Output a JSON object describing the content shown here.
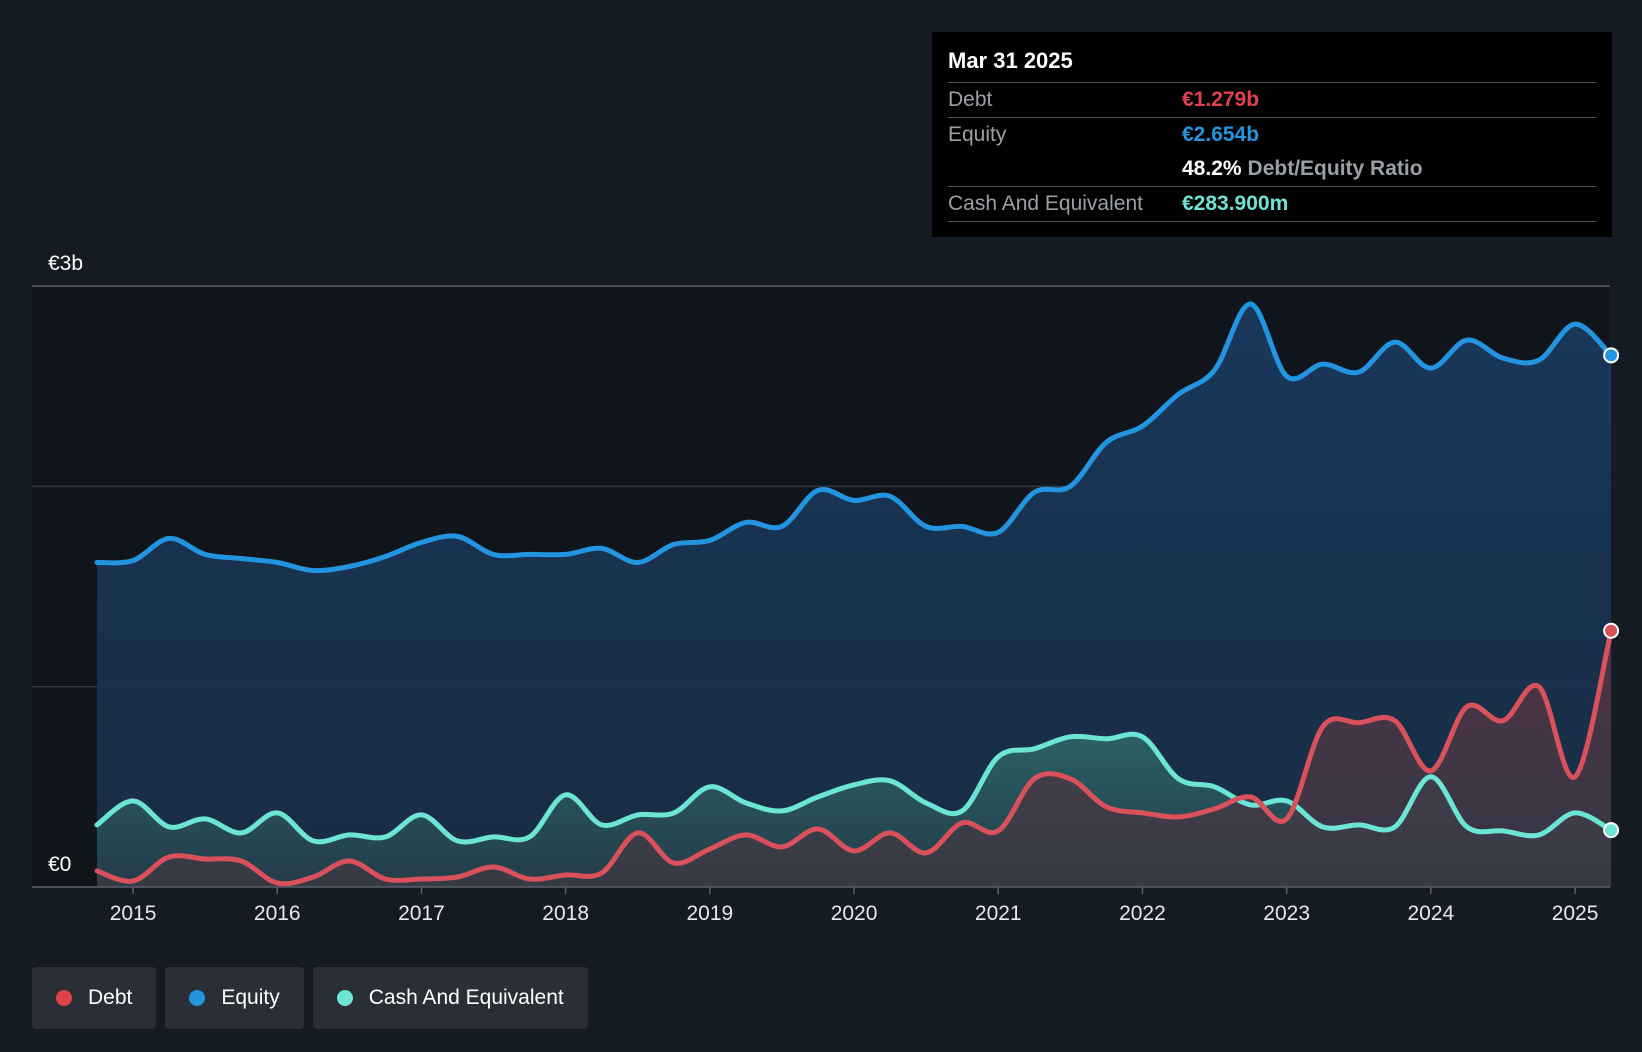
{
  "tooltip": {
    "date": "Mar 31 2025",
    "debt_label": "Debt",
    "debt_value": "€1.279b",
    "equity_label": "Equity",
    "equity_value": "€2.654b",
    "ratio_value": "48.2%",
    "ratio_label": "Debt/Equity Ratio",
    "cash_label": "Cash And Equivalent",
    "cash_value": "€283.900m"
  },
  "legend": [
    {
      "label": "Debt",
      "color": "#e2414e"
    },
    {
      "label": "Equity",
      "color": "#2394df"
    },
    {
      "label": "Cash And Equivalent",
      "color": "#6ce5d4"
    }
  ],
  "chart_data": {
    "type": "area",
    "title": "",
    "xlabel": "",
    "ylabel": "",
    "x_range": [
      2014.75,
      2025.25
    ],
    "ylim": [
      0,
      3
    ],
    "y_unit": "€b",
    "y_tick_labels": [
      {
        "value": 3,
        "label": "€3b"
      },
      {
        "value": 0,
        "label": "€0"
      }
    ],
    "gridlines": [
      1,
      2
    ],
    "x_ticks": [
      "2015",
      "2016",
      "2017",
      "2018",
      "2019",
      "2020",
      "2021",
      "2022",
      "2023",
      "2024",
      "2025"
    ],
    "colors": {
      "debt": "#d8515b",
      "equity": "#2394df",
      "cash": "#6ce5d4"
    },
    "series": [
      {
        "name": "Equity",
        "key": "equity",
        "points": [
          [
            2014.75,
            1.62
          ],
          [
            2015.0,
            1.63
          ],
          [
            2015.25,
            1.74
          ],
          [
            2015.5,
            1.66
          ],
          [
            2015.75,
            1.64
          ],
          [
            2016.0,
            1.62
          ],
          [
            2016.25,
            1.58
          ],
          [
            2016.5,
            1.6
          ],
          [
            2016.75,
            1.65
          ],
          [
            2017.0,
            1.72
          ],
          [
            2017.25,
            1.75
          ],
          [
            2017.5,
            1.66
          ],
          [
            2017.75,
            1.66
          ],
          [
            2018.0,
            1.66
          ],
          [
            2018.25,
            1.69
          ],
          [
            2018.5,
            1.62
          ],
          [
            2018.75,
            1.71
          ],
          [
            2019.0,
            1.73
          ],
          [
            2019.25,
            1.82
          ],
          [
            2019.5,
            1.8
          ],
          [
            2019.75,
            1.98
          ],
          [
            2020.0,
            1.93
          ],
          [
            2020.25,
            1.95
          ],
          [
            2020.5,
            1.8
          ],
          [
            2020.75,
            1.8
          ],
          [
            2021.0,
            1.77
          ],
          [
            2021.25,
            1.97
          ],
          [
            2021.5,
            2.0
          ],
          [
            2021.75,
            2.22
          ],
          [
            2022.0,
            2.3
          ],
          [
            2022.25,
            2.46
          ],
          [
            2022.5,
            2.58
          ],
          [
            2022.75,
            2.91
          ],
          [
            2023.0,
            2.55
          ],
          [
            2023.25,
            2.61
          ],
          [
            2023.5,
            2.57
          ],
          [
            2023.75,
            2.72
          ],
          [
            2024.0,
            2.59
          ],
          [
            2024.25,
            2.73
          ],
          [
            2024.5,
            2.64
          ],
          [
            2024.75,
            2.63
          ],
          [
            2025.0,
            2.81
          ],
          [
            2025.25,
            2.654
          ]
        ]
      },
      {
        "name": "Cash And Equivalent",
        "key": "cash",
        "points": [
          [
            2014.75,
            0.31
          ],
          [
            2015.0,
            0.43
          ],
          [
            2015.25,
            0.3
          ],
          [
            2015.5,
            0.34
          ],
          [
            2015.75,
            0.27
          ],
          [
            2016.0,
            0.37
          ],
          [
            2016.25,
            0.23
          ],
          [
            2016.5,
            0.26
          ],
          [
            2016.75,
            0.25
          ],
          [
            2017.0,
            0.36
          ],
          [
            2017.25,
            0.23
          ],
          [
            2017.5,
            0.25
          ],
          [
            2017.75,
            0.25
          ],
          [
            2018.0,
            0.46
          ],
          [
            2018.25,
            0.31
          ],
          [
            2018.5,
            0.36
          ],
          [
            2018.75,
            0.37
          ],
          [
            2019.0,
            0.5
          ],
          [
            2019.25,
            0.42
          ],
          [
            2019.5,
            0.38
          ],
          [
            2019.75,
            0.45
          ],
          [
            2020.0,
            0.51
          ],
          [
            2020.25,
            0.53
          ],
          [
            2020.5,
            0.42
          ],
          [
            2020.75,
            0.38
          ],
          [
            2021.0,
            0.65
          ],
          [
            2021.25,
            0.69
          ],
          [
            2021.5,
            0.75
          ],
          [
            2021.75,
            0.74
          ],
          [
            2022.0,
            0.75
          ],
          [
            2022.25,
            0.54
          ],
          [
            2022.5,
            0.5
          ],
          [
            2022.75,
            0.41
          ],
          [
            2023.0,
            0.43
          ],
          [
            2023.25,
            0.3
          ],
          [
            2023.5,
            0.31
          ],
          [
            2023.75,
            0.3
          ],
          [
            2024.0,
            0.55
          ],
          [
            2024.25,
            0.3
          ],
          [
            2024.5,
            0.28
          ],
          [
            2024.75,
            0.26
          ],
          [
            2025.0,
            0.37
          ],
          [
            2025.25,
            0.284
          ]
        ]
      },
      {
        "name": "Debt",
        "key": "debt",
        "points": [
          [
            2014.75,
            0.08
          ],
          [
            2015.0,
            0.03
          ],
          [
            2015.25,
            0.15
          ],
          [
            2015.5,
            0.14
          ],
          [
            2015.75,
            0.13
          ],
          [
            2016.0,
            0.02
          ],
          [
            2016.25,
            0.05
          ],
          [
            2016.5,
            0.13
          ],
          [
            2016.75,
            0.04
          ],
          [
            2017.0,
            0.04
          ],
          [
            2017.25,
            0.05
          ],
          [
            2017.5,
            0.1
          ],
          [
            2017.75,
            0.04
          ],
          [
            2018.0,
            0.06
          ],
          [
            2018.25,
            0.07
          ],
          [
            2018.5,
            0.27
          ],
          [
            2018.75,
            0.12
          ],
          [
            2019.0,
            0.19
          ],
          [
            2019.25,
            0.26
          ],
          [
            2019.5,
            0.2
          ],
          [
            2019.75,
            0.29
          ],
          [
            2020.0,
            0.18
          ],
          [
            2020.25,
            0.27
          ],
          [
            2020.5,
            0.17
          ],
          [
            2020.75,
            0.32
          ],
          [
            2021.0,
            0.28
          ],
          [
            2021.25,
            0.54
          ],
          [
            2021.5,
            0.54
          ],
          [
            2021.75,
            0.4
          ],
          [
            2022.0,
            0.37
          ],
          [
            2022.25,
            0.35
          ],
          [
            2022.5,
            0.39
          ],
          [
            2022.75,
            0.45
          ],
          [
            2023.0,
            0.34
          ],
          [
            2023.25,
            0.8
          ],
          [
            2023.5,
            0.82
          ],
          [
            2023.75,
            0.83
          ],
          [
            2024.0,
            0.58
          ],
          [
            2024.25,
            0.9
          ],
          [
            2024.5,
            0.83
          ],
          [
            2024.75,
            1.0
          ],
          [
            2025.0,
            0.55
          ],
          [
            2025.25,
            1.279
          ]
        ]
      }
    ]
  }
}
